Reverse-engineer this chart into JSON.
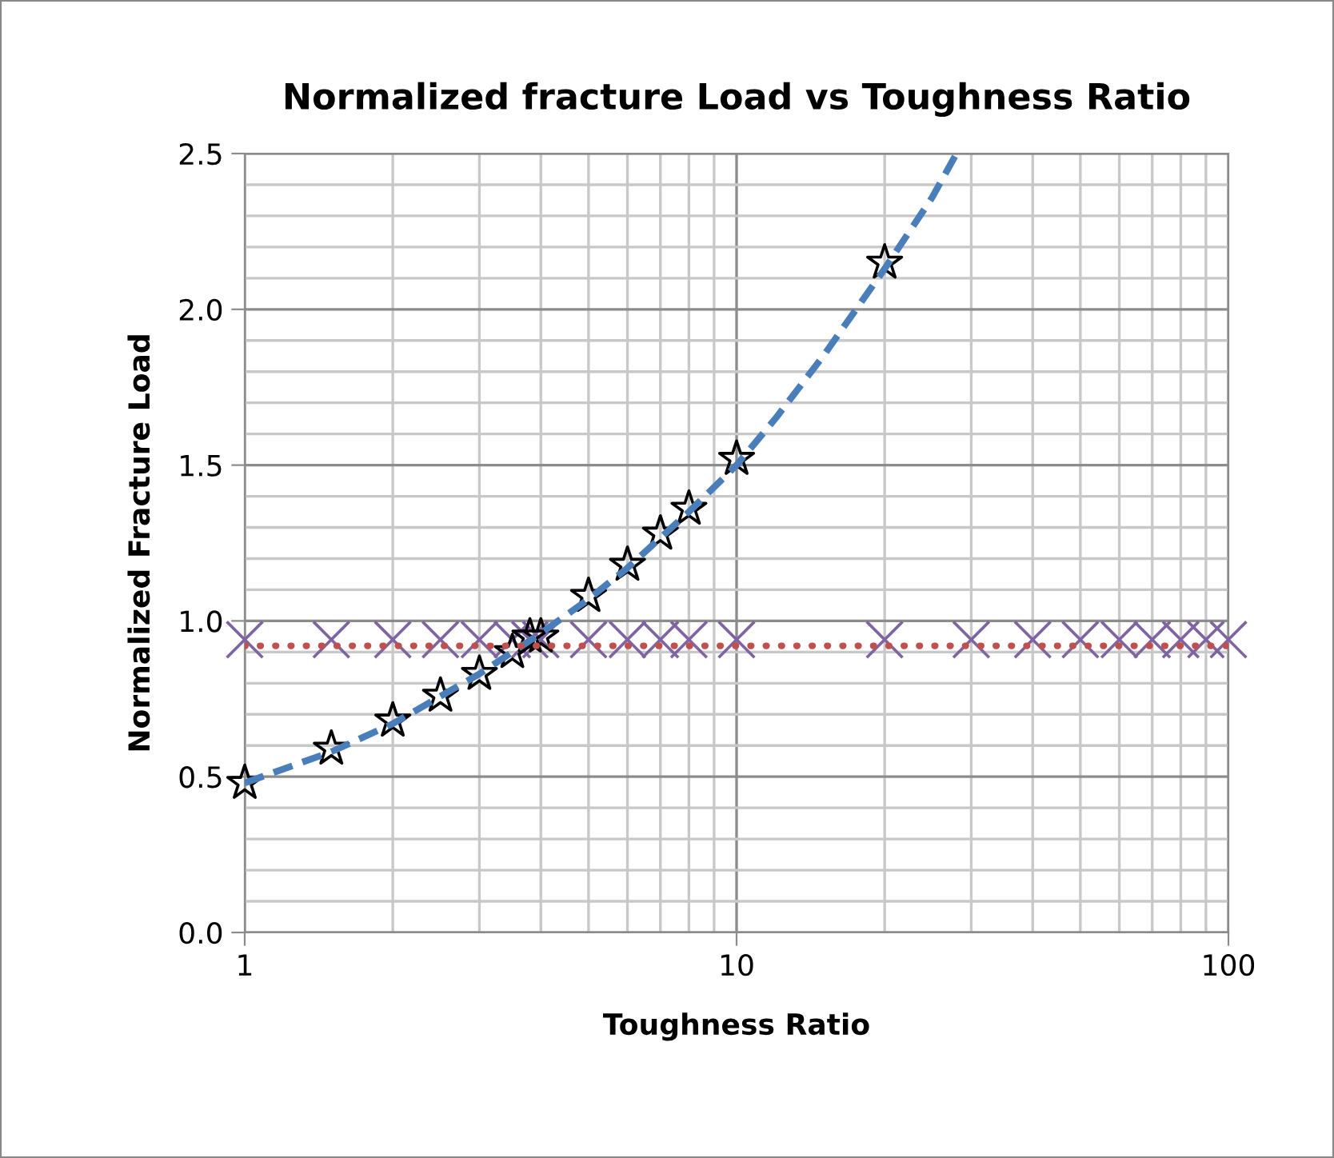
{
  "chart_data": {
    "type": "scatter",
    "title": "Normalized fracture Load vs Toughness Ratio",
    "xlabel": "Toughness Ratio",
    "ylabel": "Normalized Fracture Load",
    "log": "x",
    "xlim": [
      1,
      100
    ],
    "xticks": [
      1,
      10,
      100
    ],
    "ylim": [
      0,
      2.5
    ],
    "yticks": [
      {
        "value": 0,
        "label": "0.0"
      },
      {
        "value": 0.5,
        "label": "0.5"
      },
      {
        "value": 1,
        "label": "1.0"
      },
      {
        "value": 1.5,
        "label": "1.5"
      },
      {
        "value": 2,
        "label": "2.0"
      },
      {
        "value": 2.5,
        "label": "2.5"
      }
    ],
    "grid": true,
    "series": [
      {
        "type": "line",
        "color": "#4a7ebb",
        "line_style": "dashed",
        "marker": "none",
        "x": [
          1,
          1.5,
          2,
          3,
          4,
          5,
          6,
          8,
          10,
          12,
          15,
          20,
          25,
          28
        ],
        "values": [
          0.48,
          0.58,
          0.67,
          0.83,
          0.96,
          1.07,
          1.17,
          1.35,
          1.5,
          1.65,
          1.85,
          2.13,
          2.36,
          2.5
        ]
      },
      {
        "type": "line",
        "color": "#c0504d",
        "line_style": "dotted",
        "marker": "none",
        "x": [
          1,
          100
        ],
        "values": [
          0.92,
          0.92
        ]
      },
      {
        "color": "#8064a2",
        "marker": "cross",
        "x": [
          1,
          1.5,
          2,
          2.5,
          3,
          3.5,
          3.8,
          4,
          5,
          6,
          7,
          8,
          10,
          20,
          30,
          40,
          50,
          60,
          70,
          80,
          90,
          100
        ],
        "values": [
          0.94,
          0.94,
          0.94,
          0.94,
          0.94,
          0.94,
          0.94,
          0.94,
          0.94,
          0.94,
          0.94,
          0.94,
          0.94,
          0.94,
          0.94,
          0.94,
          0.94,
          0.94,
          0.94,
          0.94,
          0.94,
          0.94
        ]
      },
      {
        "color": "#000000",
        "marker": "star",
        "x": [
          1,
          1.5,
          2,
          2.5,
          3,
          3.5,
          3.8,
          4,
          5,
          6,
          7,
          8,
          10,
          20
        ],
        "values": [
          0.48,
          0.59,
          0.68,
          0.76,
          0.83,
          0.9,
          0.95,
          0.95,
          1.08,
          1.18,
          1.28,
          1.36,
          1.52,
          2.15
        ]
      }
    ]
  }
}
